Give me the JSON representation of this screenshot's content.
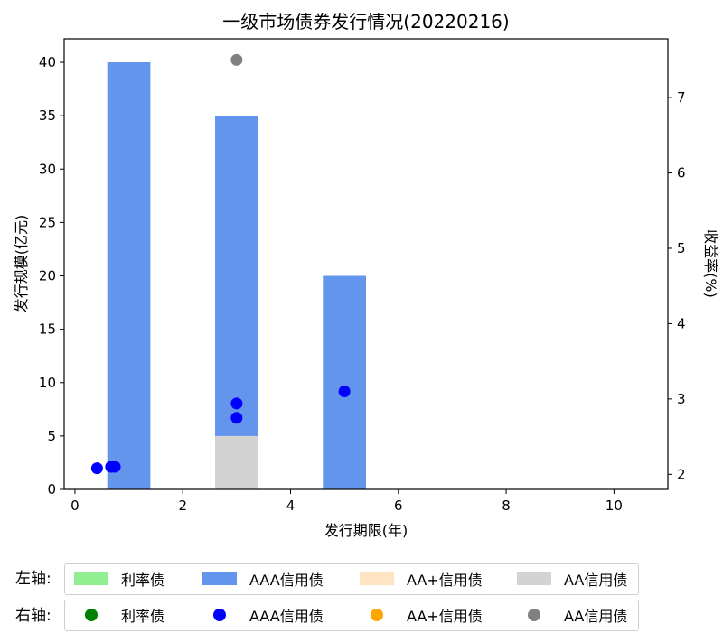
{
  "chart_data": {
    "type": "bar",
    "title": "一级市场债券发行情况(20220216)",
    "xlabel": "发行期限(年)",
    "ylabel_left": "发行规模(亿元)",
    "ylabel_right": "收益率(%)",
    "xlim": [
      -0.2,
      11
    ],
    "ylim_left": [
      0,
      42.2
    ],
    "ylim_right": [
      1.8,
      7.78
    ],
    "x_ticks": [
      0,
      2,
      4,
      6,
      8,
      10
    ],
    "y_left_ticks": [
      0,
      5,
      10,
      15,
      20,
      25,
      30,
      35,
      40
    ],
    "y_right_ticks": [
      2,
      3,
      4,
      5,
      6,
      7
    ],
    "bar_width": 0.8,
    "bar_series": [
      {
        "name": "利率债",
        "color": "#90ee90",
        "points": []
      },
      {
        "name": "AAA信用债",
        "color": "#6495ed",
        "points": [
          {
            "x": 1,
            "y": 40
          },
          {
            "x": 3,
            "y": 35
          },
          {
            "x": 5,
            "y": 20
          }
        ]
      },
      {
        "name": "AA+信用债",
        "color": "#ffe4c4",
        "points": []
      },
      {
        "name": "AA信用债",
        "color": "#d3d3d3",
        "points": [
          {
            "x": 3,
            "y": 5
          }
        ]
      }
    ],
    "scatter_series": [
      {
        "name": "利率债",
        "color": "#008000",
        "points": []
      },
      {
        "name": "AAA信用债",
        "color": "#0000ff",
        "points": [
          {
            "x": 0.41,
            "y": 2.08
          },
          {
            "x": 0.67,
            "y": 2.1
          },
          {
            "x": 0.74,
            "y": 2.1
          },
          {
            "x": 3,
            "y": 2.94
          },
          {
            "x": 3,
            "y": 2.75
          },
          {
            "x": 5,
            "y": 3.1
          }
        ]
      },
      {
        "name": "AA+信用债",
        "color": "#ffa500",
        "points": []
      },
      {
        "name": "AA信用债",
        "color": "#808080",
        "points": [
          {
            "x": 3,
            "y": 7.5
          }
        ]
      }
    ]
  },
  "legend": {
    "left_title": "左轴:",
    "right_title": "右轴:",
    "left_items": [
      {
        "label": "利率债",
        "color": "#90ee90"
      },
      {
        "label": "AAA信用债",
        "color": "#6495ed"
      },
      {
        "label": "AA+信用债",
        "color": "#ffe4c4"
      },
      {
        "label": "AA信用债",
        "color": "#d3d3d3"
      }
    ],
    "right_items": [
      {
        "label": "利率债",
        "color": "#008000"
      },
      {
        "label": "AAA信用债",
        "color": "#0000ff"
      },
      {
        "label": "AA+信用债",
        "color": "#ffa500"
      },
      {
        "label": "AA信用债",
        "color": "#808080"
      }
    ]
  }
}
